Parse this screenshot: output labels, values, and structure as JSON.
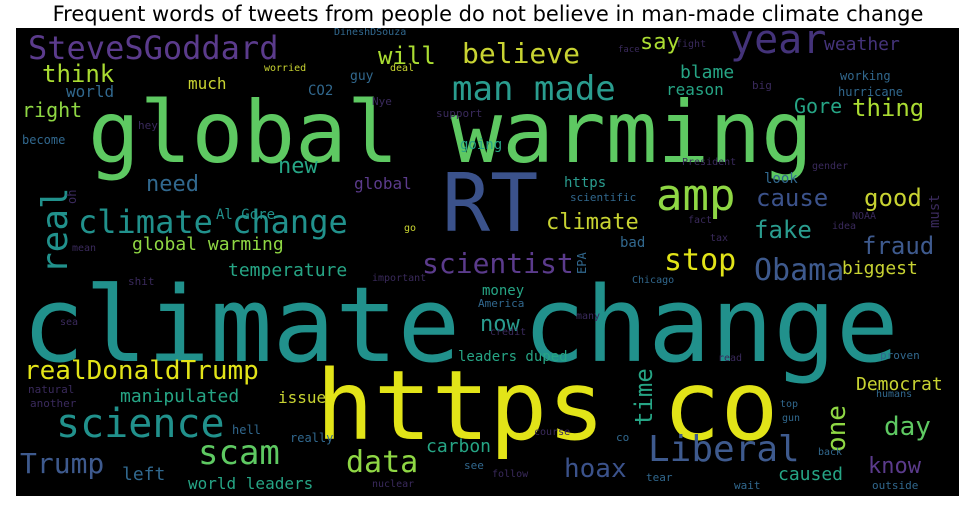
{
  "title": "Frequent words of tweets from people do not believe in man-made climate change",
  "words": {
    "global_warming": "global warming",
    "climate_change_big": "climate change",
    "https_co": "https co",
    "rt": "RT",
    "stevesgoddard": "SteveSGoddard",
    "year": "year",
    "believe": "believe",
    "man_made": "man made",
    "think": "think",
    "will": "will",
    "say": "say",
    "weather": "weather",
    "amp": "amp",
    "climate_change_mid": "climate change",
    "real": "real",
    "need": "need",
    "al_gore": "Al Gore",
    "new": "new",
    "cause": "cause",
    "good": "good",
    "fake": "fake",
    "fraud": "fraud",
    "climate": "climate",
    "global_warming_small": "global warming",
    "scientist": "scientist",
    "stop": "stop",
    "obama": "Obama",
    "temperature": "temperature",
    "biggest": "biggest",
    "thing": "thing",
    "gore": "Gore",
    "blame": "blame",
    "reason": "reason",
    "right": "right",
    "world": "world",
    "much": "much",
    "co2": "CO2",
    "realdonaldtrump": "realDonaldTrump",
    "science": "science",
    "scam": "scam",
    "data": "data",
    "trump": "Trump",
    "hoax": "hoax",
    "liberal": "Liberal",
    "now": "now",
    "time": "time",
    "one": "one",
    "day": "day",
    "know": "know",
    "democrat": "Democrat",
    "manipulated": "manipulated",
    "issue": "issue",
    "carbon": "carbon",
    "world_leaders": "world leaders",
    "left": "left",
    "caused": "caused",
    "leaders_duped": "leaders duped",
    "money": "money",
    "https": "https",
    "global_small": "global",
    "look": "look",
    "bad": "bad",
    "must": "must",
    "come": "come",
    "guy": "guy",
    "deal": "deal",
    "working": "working",
    "hurricane": "hurricane",
    "fight": "fight",
    "face": "face",
    "worried": "worried",
    "dineshdsouza": "DineshDSouza",
    "going": "going",
    "become": "become",
    "support": "support",
    "hey": "hey",
    "nye": "Nye",
    "president": "President",
    "scientific": "scientific",
    "america": "America",
    "chicago": "Chicago",
    "epa": "EPA",
    "tax": "tax",
    "fact": "fact",
    "idea": "idea",
    "noaa": "NOAA",
    "gender": "gender",
    "important": "important",
    "shit": "shit",
    "another": "another",
    "natural": "natural",
    "hell": "hell",
    "really": "really",
    "see": "see",
    "co_small": "co",
    "tear": "tear",
    "wait": "wait",
    "follow": "follow",
    "nuclear": "nuclear",
    "outside": "outside",
    "proven": "proven",
    "read": "read",
    "top": "top",
    "gun": "gun",
    "back": "back",
    "humans": "humans",
    "course": "course",
    "credit": "credit",
    "many": "many",
    "big": "big",
    "sea": "sea",
    "mean": "mean",
    "oh": "oh",
    "go": "go"
  },
  "colors": {
    "background": "#000000",
    "title_text": "#000000",
    "palette": [
      "#440154",
      "#3b528b",
      "#21918c",
      "#5ec962",
      "#fde725"
    ]
  }
}
